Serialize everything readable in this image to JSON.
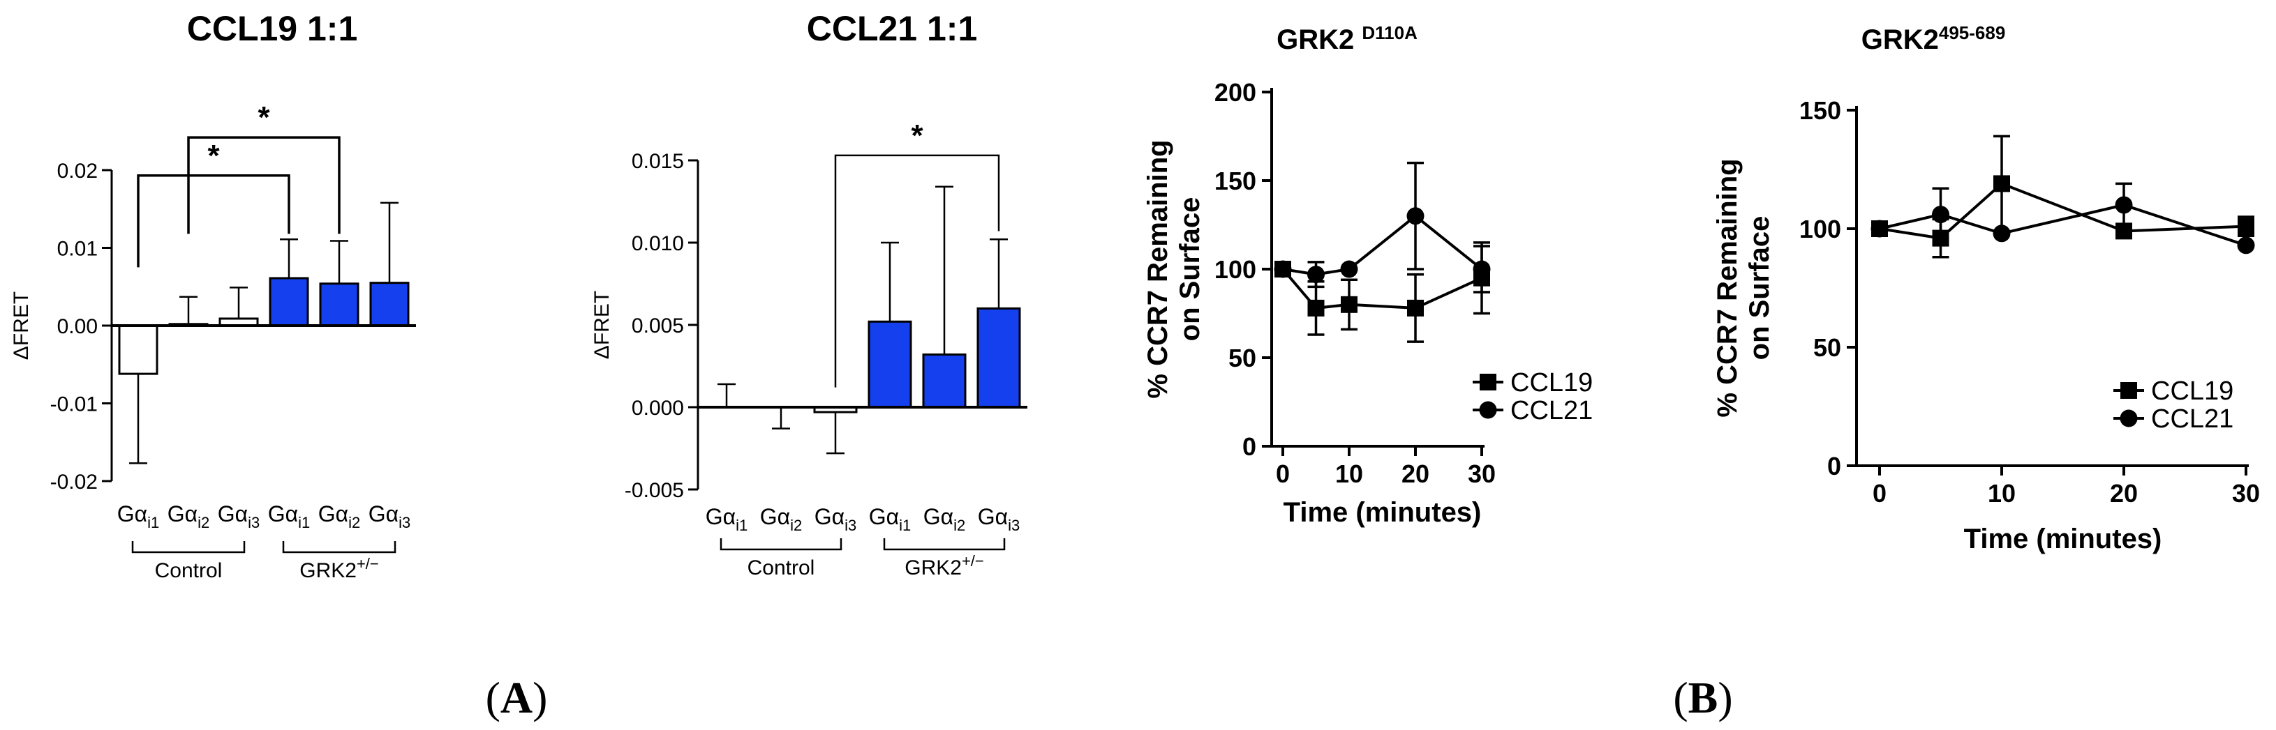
{
  "colors": {
    "gki_bar": "#1540ee",
    "control_bar": "#ffffff",
    "stroke": "#000000"
  },
  "panel_labels": {
    "a_open": "(",
    "a_letter": "A",
    "a_close": ")",
    "b_open": "(",
    "b_letter": "B",
    "b_close": ")"
  },
  "chart_data": [
    {
      "id": "ccl19_fret",
      "type": "bar",
      "title": "CCL19 1:1",
      "ylabel": "ΔFRET",
      "ylim": [
        -0.02,
        0.02
      ],
      "yticks": [
        -0.02,
        -0.01,
        0.0,
        0.01,
        0.02
      ],
      "ytick_labels": [
        "-0.02",
        "-0.01",
        "0.00",
        "0.01",
        "0.02"
      ],
      "categories": [
        "Gαi1",
        "Gαi2",
        "Gαi3",
        "Gαi1",
        "Gαi2",
        "Gαi3"
      ],
      "category_labels": [
        {
          "main": "Gα",
          "sub": "i1"
        },
        {
          "main": "Gα",
          "sub": "i2"
        },
        {
          "main": "Gα",
          "sub": "i3"
        },
        {
          "main": "Gα",
          "sub": "i1"
        },
        {
          "main": "Gα",
          "sub": "i2"
        },
        {
          "main": "Gα",
          "sub": "i3"
        }
      ],
      "values": [
        -0.0062,
        0.0002,
        0.0009,
        0.0061,
        0.0054,
        0.0055
      ],
      "errors": [
        0.0115,
        0.0035,
        0.004,
        0.005,
        0.0055,
        0.0103
      ],
      "groups": [
        {
          "label": "Control",
          "sup": "",
          "members": [
            0,
            1,
            2
          ]
        },
        {
          "label": "GRK2",
          "sup": "+/−",
          "members": [
            3,
            4,
            5
          ]
        }
      ],
      "bar_groups": [
        "Control",
        "Control",
        "Control",
        "GRK2+/−",
        "GRK2+/−",
        "GRK2+/−"
      ],
      "significance": [
        {
          "from": 0,
          "to": 3,
          "label": "*"
        },
        {
          "from": 1,
          "to": 4,
          "label": "*"
        }
      ]
    },
    {
      "id": "ccl21_fret",
      "type": "bar",
      "title": "CCL21 1:1",
      "ylabel": "ΔFRET",
      "ylim": [
        -0.005,
        0.015
      ],
      "yticks": [
        -0.005,
        0.0,
        0.005,
        0.01,
        0.015
      ],
      "ytick_labels": [
        "-0.005",
        "0.000",
        "0.005",
        "0.010",
        "0.015"
      ],
      "categories": [
        "Gαi1",
        "Gαi2",
        "Gαi3",
        "Gαi1",
        "Gαi2",
        "Gαi3"
      ],
      "category_labels": [
        {
          "main": "Gα",
          "sub": "i1"
        },
        {
          "main": "Gα",
          "sub": "i2"
        },
        {
          "main": "Gα",
          "sub": "i3"
        },
        {
          "main": "Gα",
          "sub": "i1"
        },
        {
          "main": "Gα",
          "sub": "i2"
        },
        {
          "main": "Gα",
          "sub": "i3"
        }
      ],
      "values": [
        0.0,
        0.0,
        -0.0003,
        0.0052,
        0.0032,
        0.006
      ],
      "errors": [
        0.0014,
        0.0013,
        0.0025,
        0.0048,
        0.0102,
        0.0042
      ],
      "err_dirs": [
        "up",
        "down",
        "down",
        "up",
        "up",
        "up"
      ],
      "groups": [
        {
          "label": "Control",
          "sup": "",
          "members": [
            0,
            1,
            2
          ]
        },
        {
          "label": "GRK2",
          "sup": "+/−",
          "members": [
            3,
            4,
            5
          ]
        }
      ],
      "bar_groups": [
        "Control",
        "Control",
        "Control",
        "GRK2+/−",
        "GRK2+/−",
        "GRK2+/−"
      ],
      "significance": [
        {
          "from": 2,
          "to": 5,
          "label": "*"
        }
      ]
    },
    {
      "id": "grk2_d110a",
      "type": "line",
      "title_main": "GRK2 ",
      "title_sup": "D110A",
      "xlabel": "Time (minutes)",
      "ylabel_line1": "% CCR7 Remaining",
      "ylabel_line2": "on Surface",
      "xlim": [
        0,
        30
      ],
      "ylim": [
        0,
        200
      ],
      "xticks": [
        0,
        10,
        20,
        30
      ],
      "yticks": [
        0,
        50,
        100,
        150,
        200
      ],
      "series": [
        {
          "name": "CCL19",
          "marker": "square",
          "x": [
            0,
            5,
            10,
            20,
            30
          ],
          "y": [
            100,
            78,
            80,
            78,
            95
          ],
          "err": [
            0,
            15,
            14,
            19,
            20
          ]
        },
        {
          "name": "CCL21",
          "marker": "circle",
          "x": [
            0,
            5,
            10,
            20,
            30
          ],
          "y": [
            100,
            97,
            100,
            130,
            100
          ],
          "err": [
            0,
            7,
            0,
            30,
            13
          ]
        }
      ],
      "legend": "bottom-right"
    },
    {
      "id": "grk2_495_689",
      "type": "line",
      "title_main": "GRK2",
      "title_sup": "495-689",
      "xlabel": "Time (minutes)",
      "ylabel_line1": "% CCR7 Remaining",
      "ylabel_line2": "on Surface",
      "xlim": [
        0,
        30
      ],
      "ylim": [
        0,
        150
      ],
      "xticks": [
        0,
        10,
        20,
        30
      ],
      "yticks": [
        0,
        50,
        100,
        150
      ],
      "series": [
        {
          "name": "CCL19",
          "marker": "square",
          "x": [
            0,
            5,
            10,
            20,
            30
          ],
          "y": [
            100,
            96,
            119,
            99,
            101
          ],
          "err": [
            0,
            8,
            20,
            0,
            4
          ]
        },
        {
          "name": "CCL21",
          "marker": "circle",
          "x": [
            0,
            5,
            10,
            20,
            30
          ],
          "y": [
            100,
            106,
            98,
            110,
            93
          ],
          "err": [
            0,
            11,
            0,
            9,
            0
          ]
        }
      ],
      "legend": "bottom-right"
    }
  ]
}
